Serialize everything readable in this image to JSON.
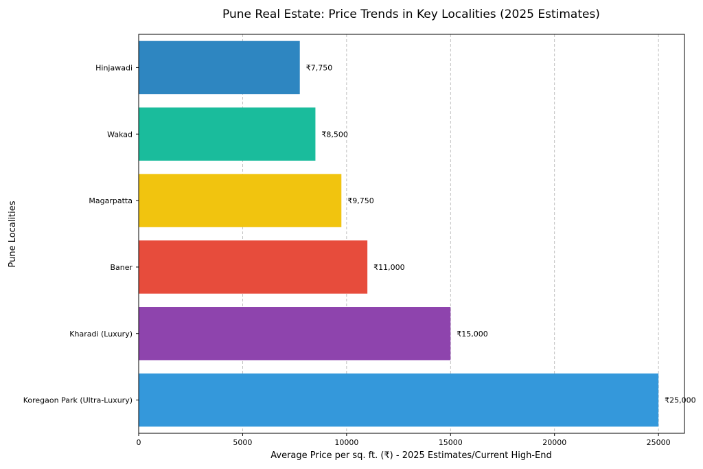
{
  "chart_data": {
    "type": "bar",
    "orientation": "horizontal",
    "title": "Pune Real Estate: Price Trends in Key Localities (2025 Estimates)",
    "xlabel": "Average Price per sq. ft. (₹) - 2025 Estimates/Current High-End",
    "ylabel": "Pune Localities",
    "categories": [
      "Koregaon Park (Ultra-Luxury)",
      "Kharadi (Luxury)",
      "Baner",
      "Magarpatta",
      "Wakad",
      "Hinjawadi"
    ],
    "values": [
      25000,
      15000,
      11000,
      9750,
      8500,
      7750
    ],
    "value_labels": [
      "₹25,000",
      "₹15,000",
      "₹11,000",
      "₹9,750",
      "₹8,500",
      "₹7,750"
    ],
    "colors": [
      "#3498db",
      "#8e44ad",
      "#e74c3c",
      "#f1c40f",
      "#1abc9c",
      "#2e86c1"
    ],
    "xlim": [
      0,
      26250
    ],
    "xticks": [
      0,
      5000,
      10000,
      15000,
      20000,
      25000
    ],
    "grid": "x-axis dashed",
    "legend": "none"
  }
}
